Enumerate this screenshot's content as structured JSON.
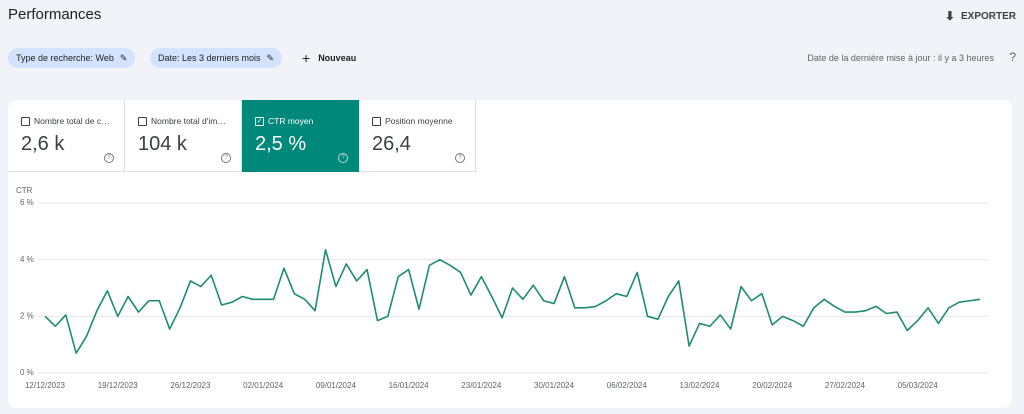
{
  "header": {
    "title": "Performances",
    "export": "EXPORTER"
  },
  "filters": {
    "items": [
      "Type de recherche: Web",
      "Date: Les 3 derniers mois"
    ],
    "new": "Nouveau",
    "updated": "Date de la dernière mise à jour : il y a 3 heures"
  },
  "cards": [
    {
      "label": "Nombre total de c…",
      "value": "2,6 k",
      "checked": false
    },
    {
      "label": "Nombre total d'im…",
      "value": "104 k",
      "checked": false
    },
    {
      "label": "CTR moyen",
      "value": "2,5 %",
      "checked": true
    },
    {
      "label": "Position moyenne",
      "value": "26,4",
      "checked": false
    }
  ],
  "chart_data": {
    "type": "line",
    "y_label": "CTR",
    "color": "#1e8c73",
    "grid": true,
    "ylim": [
      0,
      6
    ],
    "yticks": [
      {
        "value": 0,
        "label": "0 %"
      },
      {
        "value": 2,
        "label": "2 %"
      },
      {
        "value": 4,
        "label": "4 %"
      },
      {
        "value": 6,
        "label": "6 %"
      }
    ],
    "categories": [
      "12/12/2023",
      null,
      null,
      null,
      null,
      null,
      null,
      "19/12/2023",
      null,
      null,
      null,
      null,
      null,
      null,
      "26/12/2023",
      null,
      null,
      null,
      null,
      null,
      null,
      "02/01/2024",
      null,
      null,
      null,
      null,
      null,
      null,
      "09/01/2024",
      null,
      null,
      null,
      null,
      null,
      null,
      "16/01/2024",
      null,
      null,
      null,
      null,
      null,
      null,
      "23/01/2024",
      null,
      null,
      null,
      null,
      null,
      null,
      "30/01/2024",
      null,
      null,
      null,
      null,
      null,
      null,
      "06/02/2024",
      null,
      null,
      null,
      null,
      null,
      null,
      "13/02/2024",
      null,
      null,
      null,
      null,
      null,
      null,
      "20/02/2024",
      null,
      null,
      null,
      null,
      null,
      null,
      "27/02/2024",
      null,
      null,
      null,
      null,
      null,
      null,
      "05/03/2024",
      null,
      null,
      null,
      null,
      null,
      null
    ],
    "values": [
      2.0,
      1.65,
      2.05,
      0.7,
      1.3,
      2.2,
      2.9,
      2.0,
      2.7,
      2.15,
      2.55,
      2.55,
      1.55,
      2.3,
      3.25,
      3.05,
      3.45,
      2.4,
      2.5,
      2.7,
      2.6,
      2.6,
      2.6,
      3.7,
      2.8,
      2.6,
      2.2,
      4.35,
      3.05,
      3.85,
      3.25,
      3.65,
      1.85,
      2.0,
      3.4,
      3.65,
      2.25,
      3.8,
      4.0,
      3.8,
      3.55,
      2.75,
      3.4,
      2.7,
      1.95,
      3.0,
      2.6,
      3.1,
      2.55,
      2.45,
      3.4,
      2.3,
      2.3,
      2.35,
      2.55,
      2.8,
      2.7,
      3.55,
      2.0,
      1.9,
      2.7,
      3.25,
      0.95,
      1.75,
      1.65,
      2.05,
      1.55,
      3.05,
      2.55,
      2.8,
      1.7,
      2.0,
      1.85,
      1.65,
      2.3,
      2.6,
      2.35,
      2.15,
      2.15,
      2.2,
      2.35,
      2.1,
      2.15,
      1.5,
      1.85,
      2.3,
      1.75,
      2.3,
      2.5,
      2.55,
      2.6
    ]
  }
}
